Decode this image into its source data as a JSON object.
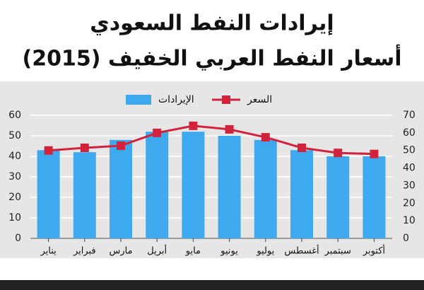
{
  "chart_data": {
    "type": "bar-line",
    "title": "إيرادات النفط السعودي",
    "subtitle": "أسعار النفط العربي الخفيف (2015)",
    "categories": [
      "يناير",
      "فبراير",
      "مارس",
      "أبريل",
      "مايو",
      "يونيو",
      "يوليو",
      "أغسطس",
      "سبتمبر",
      "أكتوبر"
    ],
    "series": [
      {
        "name": "الإيرادات",
        "type": "bar",
        "color": "#3fa9f0",
        "values": [
          43,
          42,
          48,
          52,
          52,
          50,
          48,
          43,
          40,
          40
        ]
      },
      {
        "name": "السعر",
        "type": "line",
        "axis": "y2",
        "color": "#d2233c",
        "values": [
          50,
          51.5,
          52.7,
          60,
          64,
          62,
          57.5,
          51.5,
          48.6,
          48
        ]
      }
    ],
    "ylim": [
      0,
      60
    ],
    "yticks": [
      0,
      10,
      20,
      30,
      40,
      50,
      60
    ],
    "y2lim": [
      0,
      70
    ],
    "y2ticks": [
      0,
      10,
      20,
      30,
      40,
      50,
      60,
      70
    ],
    "grid": true
  }
}
